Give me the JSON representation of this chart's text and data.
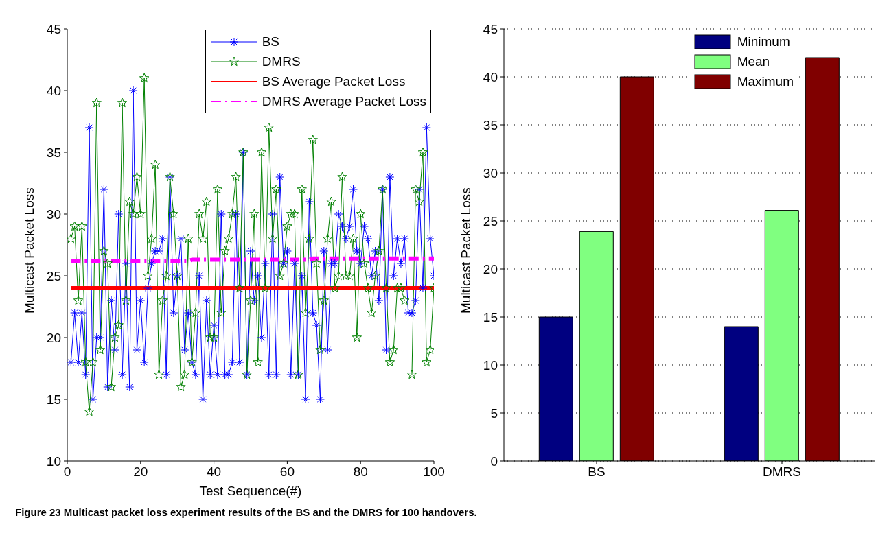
{
  "chart_data": [
    {
      "type": "line",
      "xlabel": "Test Sequence(#)",
      "ylabel": "Multicast Packet Loss",
      "xlim": [
        0,
        100
      ],
      "xticks": [
        0,
        20,
        40,
        60,
        80,
        100
      ],
      "ylim": [
        10,
        45
      ],
      "yticks": [
        10,
        15,
        20,
        25,
        30,
        35,
        40,
        45
      ],
      "legend": "top right",
      "x": [
        1,
        2,
        3,
        4,
        5,
        6,
        7,
        8,
        9,
        10,
        11,
        12,
        13,
        14,
        15,
        16,
        17,
        18,
        19,
        20,
        21,
        22,
        23,
        24,
        25,
        26,
        27,
        28,
        29,
        30,
        31,
        32,
        33,
        34,
        35,
        36,
        37,
        38,
        39,
        40,
        41,
        42,
        43,
        44,
        45,
        46,
        47,
        48,
        49,
        50,
        51,
        52,
        53,
        54,
        55,
        56,
        57,
        58,
        59,
        60,
        61,
        62,
        63,
        64,
        65,
        66,
        67,
        68,
        69,
        70,
        71,
        72,
        73,
        74,
        75,
        76,
        77,
        78,
        79,
        80,
        81,
        82,
        83,
        84,
        85,
        86,
        87,
        88,
        89,
        90,
        91,
        92,
        93,
        94,
        95,
        96,
        97,
        98,
        99,
        100
      ],
      "series": [
        {
          "name": "BS",
          "color": "#0000ff",
          "marker": "cross",
          "line_style": "solid",
          "values": [
            18,
            22,
            18,
            22,
            17,
            37,
            15,
            20,
            20,
            32,
            16,
            23,
            19,
            30,
            17,
            26,
            16,
            40,
            19,
            23,
            18,
            24,
            26,
            27,
            27,
            28,
            17,
            33,
            22,
            25,
            28,
            19,
            22,
            18,
            17,
            25,
            15,
            23,
            17,
            21,
            17,
            30,
            17,
            17,
            18,
            30,
            18,
            35,
            17,
            27,
            23,
            25,
            20,
            26,
            17,
            30,
            17,
            33,
            26,
            27,
            17,
            26,
            17,
            25,
            15,
            31,
            22,
            21,
            15,
            27,
            19,
            26,
            26,
            30,
            29,
            28,
            29,
            32,
            27,
            26,
            29,
            28,
            25,
            27,
            23,
            32,
            19,
            33,
            25,
            28,
            26,
            28,
            22,
            22,
            23,
            32,
            24,
            37,
            28,
            25
          ]
        },
        {
          "name": "DMRS",
          "color": "#008000",
          "marker": "star",
          "line_style": "solid",
          "values": [
            28,
            29,
            23,
            29,
            18,
            14,
            18,
            39,
            19,
            27,
            26,
            16,
            20,
            21,
            39,
            23,
            31,
            30,
            33,
            30,
            41,
            25,
            28,
            34,
            17,
            23,
            25,
            33,
            30,
            25,
            16,
            17,
            28,
            18,
            22,
            30,
            28,
            31,
            20,
            20,
            32,
            22,
            27,
            28,
            30,
            33,
            24,
            35,
            17,
            23,
            30,
            18,
            35,
            24,
            37,
            28,
            32,
            25,
            26,
            29,
            30,
            30,
            17,
            32,
            22,
            28,
            36,
            26,
            19,
            23,
            28,
            31,
            24,
            25,
            33,
            25,
            25,
            28,
            20,
            30,
            26,
            24,
            22,
            25,
            27,
            32,
            24,
            18,
            19,
            24,
            24,
            23,
            null,
            17,
            32,
            31,
            35,
            18,
            19,
            24
          ]
        },
        {
          "name": "BS Average Packet Loss",
          "color": "#ff0000",
          "marker": "none",
          "line_style": "solid",
          "values": [
            24,
            24,
            24,
            24,
            24,
            24,
            24,
            24,
            24,
            24,
            24,
            24,
            24,
            24,
            24,
            24,
            24,
            24,
            24,
            24,
            24,
            24,
            24,
            24,
            24,
            24,
            24,
            24,
            24,
            24,
            24,
            24,
            24,
            24,
            24,
            24,
            24,
            24,
            24,
            24,
            24,
            24,
            24,
            24,
            24,
            24,
            24,
            24,
            24,
            24,
            24,
            24,
            24,
            24,
            24,
            24,
            24,
            24,
            24,
            24,
            24,
            24,
            24,
            24,
            24,
            24,
            24,
            24,
            24,
            24,
            24,
            24,
            24,
            24,
            24,
            24,
            24,
            24,
            24,
            24,
            24,
            24,
            24,
            24,
            24,
            24,
            24,
            24,
            24,
            24,
            24,
            24,
            24,
            24,
            24,
            24,
            24,
            24,
            24,
            24
          ]
        },
        {
          "name": "DMRS Average Packet Loss",
          "color": "#ff00ff",
          "marker": "none",
          "line_style": "dashed",
          "values": [
            26.2,
            26.2,
            26.2,
            26.2,
            26.2,
            26.2,
            26.2,
            26.2,
            26.2,
            26.2,
            26.2,
            26.2,
            26.2,
            26.2,
            26.2,
            26.2,
            26.2,
            26.2,
            26.2,
            26.2,
            26.2,
            26.2,
            26.2,
            26.2,
            26.2,
            26.2,
            26.2,
            26.2,
            26.2,
            26.2,
            26.2,
            26.2,
            26.2,
            26.3,
            26.3,
            26.3,
            26.3,
            26.3,
            26.3,
            26.3,
            26.3,
            26.3,
            26.3,
            26.3,
            26.3,
            26.3,
            26.3,
            26.3,
            26.3,
            26.3,
            26.3,
            26.3,
            26.3,
            26.3,
            26.3,
            26.3,
            26.3,
            26.3,
            26.3,
            26.3,
            26.3,
            26.3,
            26.3,
            26.3,
            26.3,
            26.3,
            26.4,
            26.4,
            26.4,
            26.4,
            26.4,
            26.4,
            26.4,
            26.4,
            26.4,
            26.4,
            26.4,
            26.4,
            26.4,
            26.4,
            26.4,
            26.4,
            26.4,
            26.4,
            26.4,
            26.4,
            26.4,
            26.4,
            26.4,
            26.4,
            26.4,
            26.4,
            26.4,
            26.4,
            26.4,
            26.4,
            26.4,
            26.4,
            26.4,
            26.4
          ]
        }
      ],
      "annotations": [
        "Figure 23 Multicast packet loss experiment results of the BS and the DMRS for 100 handovers."
      ]
    },
    {
      "type": "bar",
      "ylabel": "Multicast Packet Loss",
      "categories": [
        "BS",
        "DMRS"
      ],
      "ylim": [
        0,
        45
      ],
      "yticks": [
        0,
        5,
        10,
        15,
        20,
        25,
        30,
        35,
        40,
        45
      ],
      "grid": "y",
      "legend": "top right",
      "series": [
        {
          "name": "Minimum",
          "color": "#000080",
          "values": [
            15,
            14
          ]
        },
        {
          "name": "Mean",
          "color": "#80ff80",
          "values": [
            23.9,
            26.1
          ]
        },
        {
          "name": "Maximum",
          "color": "#800000",
          "values": [
            40,
            42
          ]
        }
      ]
    }
  ]
}
